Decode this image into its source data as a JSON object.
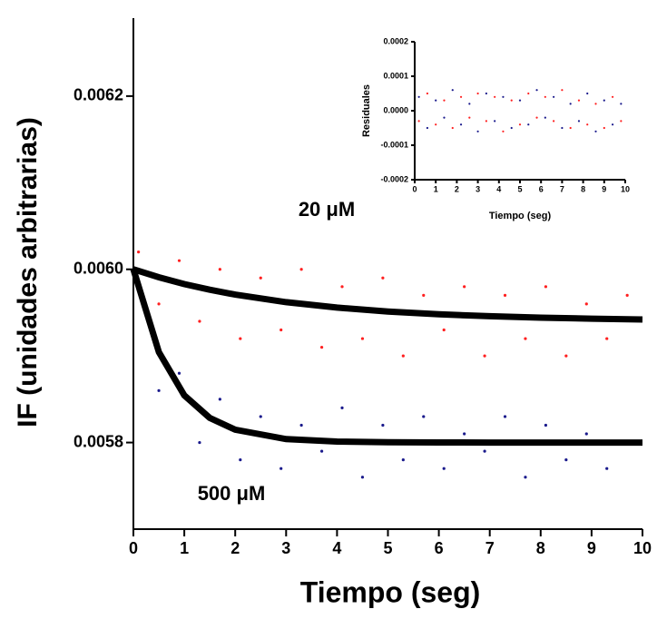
{
  "chart_data": [
    {
      "type": "scatter",
      "xlabel": "Tiempo (seg)",
      "ylabel": "IF (unidades arbitrarias)",
      "annotations": [
        "20 μM",
        "500 μM"
      ],
      "xlim": [
        0,
        10
      ],
      "ylim": [
        0.0057,
        0.00629
      ],
      "xticks": [
        0,
        1,
        2,
        3,
        4,
        5,
        6,
        7,
        8,
        9,
        10
      ],
      "yticks": [
        {
          "value": 0.0058,
          "label": "0.0058"
        },
        {
          "value": 0.006,
          "label": "0.0060"
        },
        {
          "value": 0.0062,
          "label": "0.0062"
        }
      ],
      "series": [
        {
          "color": "#ff2020",
          "x": [
            0.1,
            0.5,
            0.9,
            1.3,
            1.7,
            2.1,
            2.5,
            2.9,
            3.3,
            3.7,
            4.1,
            4.5,
            4.9,
            5.3,
            5.7,
            6.1,
            6.5,
            6.9,
            7.3,
            7.7,
            8.1,
            8.5,
            8.9,
            9.3,
            9.7
          ],
          "values": [
            0.00602,
            0.00596,
            0.00601,
            0.00594,
            0.006,
            0.00592,
            0.00599,
            0.00593,
            0.006,
            0.00591,
            0.00598,
            0.00592,
            0.00599,
            0.0059,
            0.00597,
            0.00593,
            0.00598,
            0.0059,
            0.00597,
            0.00592,
            0.00598,
            0.0059,
            0.00596,
            0.00592,
            0.00597
          ]
        },
        {
          "color": "#1a1a8c",
          "x": [
            0.1,
            0.5,
            0.9,
            1.3,
            1.7,
            2.1,
            2.5,
            2.9,
            3.3,
            3.7,
            4.1,
            4.5,
            4.9,
            5.3,
            5.7,
            6.1,
            6.5,
            6.9,
            7.3,
            7.7,
            8.1,
            8.5,
            8.9,
            9.3,
            9.7
          ],
          "values": [
            0.00598,
            0.00586,
            0.00588,
            0.0058,
            0.00585,
            0.00578,
            0.00583,
            0.00577,
            0.00582,
            0.00579,
            0.00584,
            0.00576,
            0.00582,
            0.00578,
            0.00583,
            0.00577,
            0.00581,
            0.00579,
            0.00583,
            0.00576,
            0.00582,
            0.00578,
            0.00581,
            0.00577,
            0.0058
          ]
        },
        {
          "color": "#000000",
          "line": true,
          "x": [
            0,
            0.5,
            1,
            1.5,
            2,
            3,
            4,
            5,
            6,
            7,
            8,
            9,
            10
          ],
          "values": [
            0.006,
            0.0059908,
            0.005983,
            0.0059764,
            0.0059708,
            0.0059621,
            0.0059558,
            0.0059513,
            0.0059481,
            0.0059458,
            0.0059442,
            0.005943,
            0.0059421
          ]
        },
        {
          "color": "#000000",
          "line": true,
          "x": [
            0,
            0.5,
            1,
            1.5,
            2,
            3,
            4,
            5,
            6,
            7,
            8,
            9,
            10
          ],
          "values": [
            0.006,
            0.0059044,
            0.0058545,
            0.0058285,
            0.0058149,
            0.005804,
            0.0058011,
            0.0058003,
            0.0058001,
            0.0058,
            0.0058,
            0.0058,
            0.0058
          ]
        }
      ]
    },
    {
      "type": "scatter",
      "xlabel": "Tiempo (seg)",
      "ylabel": "Residuales",
      "xlim": [
        0,
        10
      ],
      "ylim": [
        -0.0002,
        0.0002
      ],
      "xticks": [
        0,
        1,
        2,
        3,
        4,
        5,
        6,
        7,
        8,
        9,
        10
      ],
      "yticks": [
        {
          "value": -0.0002,
          "label": "-0.0002"
        },
        {
          "value": -0.0001,
          "label": "-0.0001"
        },
        {
          "value": 0,
          "label": "0.0000"
        },
        {
          "value": 0.0001,
          "label": "0.0001"
        },
        {
          "value": 0.0002,
          "label": "0.0002"
        }
      ],
      "series": [
        {
          "color": "#1a1a8c",
          "x": [
            0.2,
            0.6,
            1,
            1.4,
            1.8,
            2.2,
            2.6,
            3,
            3.4,
            3.8,
            4.2,
            4.6,
            5,
            5.4,
            5.8,
            6.2,
            6.6,
            7,
            7.4,
            7.8,
            8.2,
            8.6,
            9,
            9.4,
            9.8
          ],
          "values": [
            4e-05,
            -5e-05,
            3e-05,
            -2e-05,
            6e-05,
            -4e-05,
            2e-05,
            -6e-05,
            5e-05,
            -3e-05,
            4e-05,
            -5e-05,
            3e-05,
            -4e-05,
            6e-05,
            -2e-05,
            4e-05,
            -5e-05,
            2e-05,
            -3e-05,
            5e-05,
            -6e-05,
            3e-05,
            -4e-05,
            2e-05
          ]
        },
        {
          "color": "#ff2020",
          "x": [
            0.2,
            0.6,
            1,
            1.4,
            1.8,
            2.2,
            2.6,
            3,
            3.4,
            3.8,
            4.2,
            4.6,
            5,
            5.4,
            5.8,
            6.2,
            6.6,
            7,
            7.4,
            7.8,
            8.2,
            8.6,
            9,
            9.4,
            9.8
          ],
          "values": [
            -3e-05,
            5e-05,
            -4e-05,
            3e-05,
            -5e-05,
            4e-05,
            -2e-05,
            5e-05,
            -3e-05,
            4e-05,
            -6e-05,
            3e-05,
            -4e-05,
            5e-05,
            -2e-05,
            4e-05,
            -3e-05,
            6e-05,
            -5e-05,
            3e-05,
            -4e-05,
            2e-05,
            -5e-05,
            4e-05,
            -3e-05
          ]
        }
      ]
    }
  ]
}
